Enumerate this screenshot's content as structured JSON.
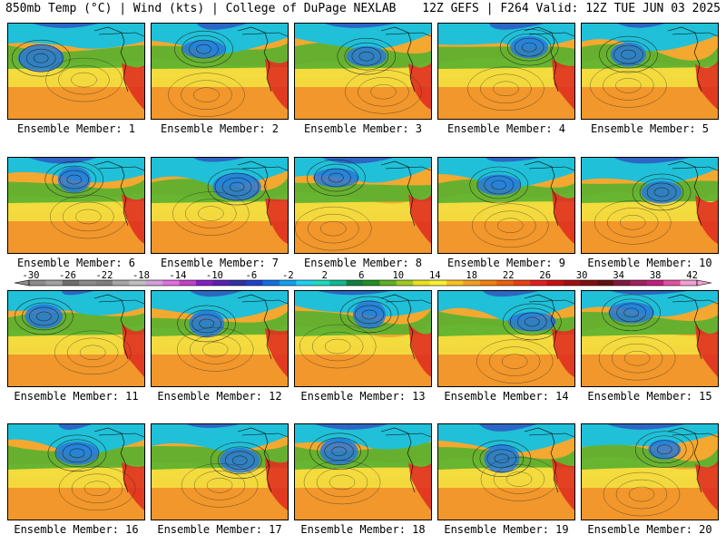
{
  "header": {
    "left": "850mb Temp (°C) | Wind (kts) | College of DuPage NEXLAB",
    "right": "12Z GEFS | F264 Valid: 12Z TUE JUN 03 2025"
  },
  "caption_prefix": "Ensemble Member: ",
  "members": [
    {
      "label": "Ensemble Member: 1"
    },
    {
      "label": "Ensemble Member: 2"
    },
    {
      "label": "Ensemble Member: 3"
    },
    {
      "label": "Ensemble Member: 4"
    },
    {
      "label": "Ensemble Member: 5"
    },
    {
      "label": "Ensemble Member: 6"
    },
    {
      "label": "Ensemble Member: 7"
    },
    {
      "label": "Ensemble Member: 8"
    },
    {
      "label": "Ensemble Member: 9"
    },
    {
      "label": "Ensemble Member: 10"
    },
    {
      "label": "Ensemble Member: 11"
    },
    {
      "label": "Ensemble Member: 12"
    },
    {
      "label": "Ensemble Member: 13"
    },
    {
      "label": "Ensemble Member: 14"
    },
    {
      "label": "Ensemble Member: 15"
    },
    {
      "label": "Ensemble Member: 16"
    },
    {
      "label": "Ensemble Member: 17"
    },
    {
      "label": "Ensemble Member: 18"
    },
    {
      "label": "Ensemble Member: 19"
    },
    {
      "label": "Ensemble Member: 20"
    }
  ],
  "colorbar": {
    "tick_labels": [
      "-30",
      "-26",
      "-22",
      "-18",
      "-14",
      "-10",
      "-6",
      "-2",
      "2",
      "6",
      "10",
      "14",
      "18",
      "22",
      "26",
      "30",
      "34",
      "38",
      "42"
    ],
    "colors": [
      "#8c8c8c",
      "#a0a0a0",
      "#6e6e6e",
      "#8a8a8a",
      "#7f7f7f",
      "#a5a5a5",
      "#bfbfbf",
      "#d0a0d8",
      "#e070e0",
      "#c040c8",
      "#8020c0",
      "#5a20b0",
      "#3030a0",
      "#2040c8",
      "#1070e0",
      "#10a0f0",
      "#20d0f0",
      "#20d8c0",
      "#10b890",
      "#108040",
      "#209020",
      "#60b020",
      "#a0c820",
      "#e8e020",
      "#f8f030",
      "#f8c020",
      "#f0a020",
      "#f08010",
      "#e86010",
      "#e84010",
      "#e02020",
      "#c81010",
      "#a01010",
      "#801010",
      "#601010",
      "#801840",
      "#a02060",
      "#c02080",
      "#e050a0",
      "#f0a0d0"
    ],
    "arrows": "both"
  }
}
